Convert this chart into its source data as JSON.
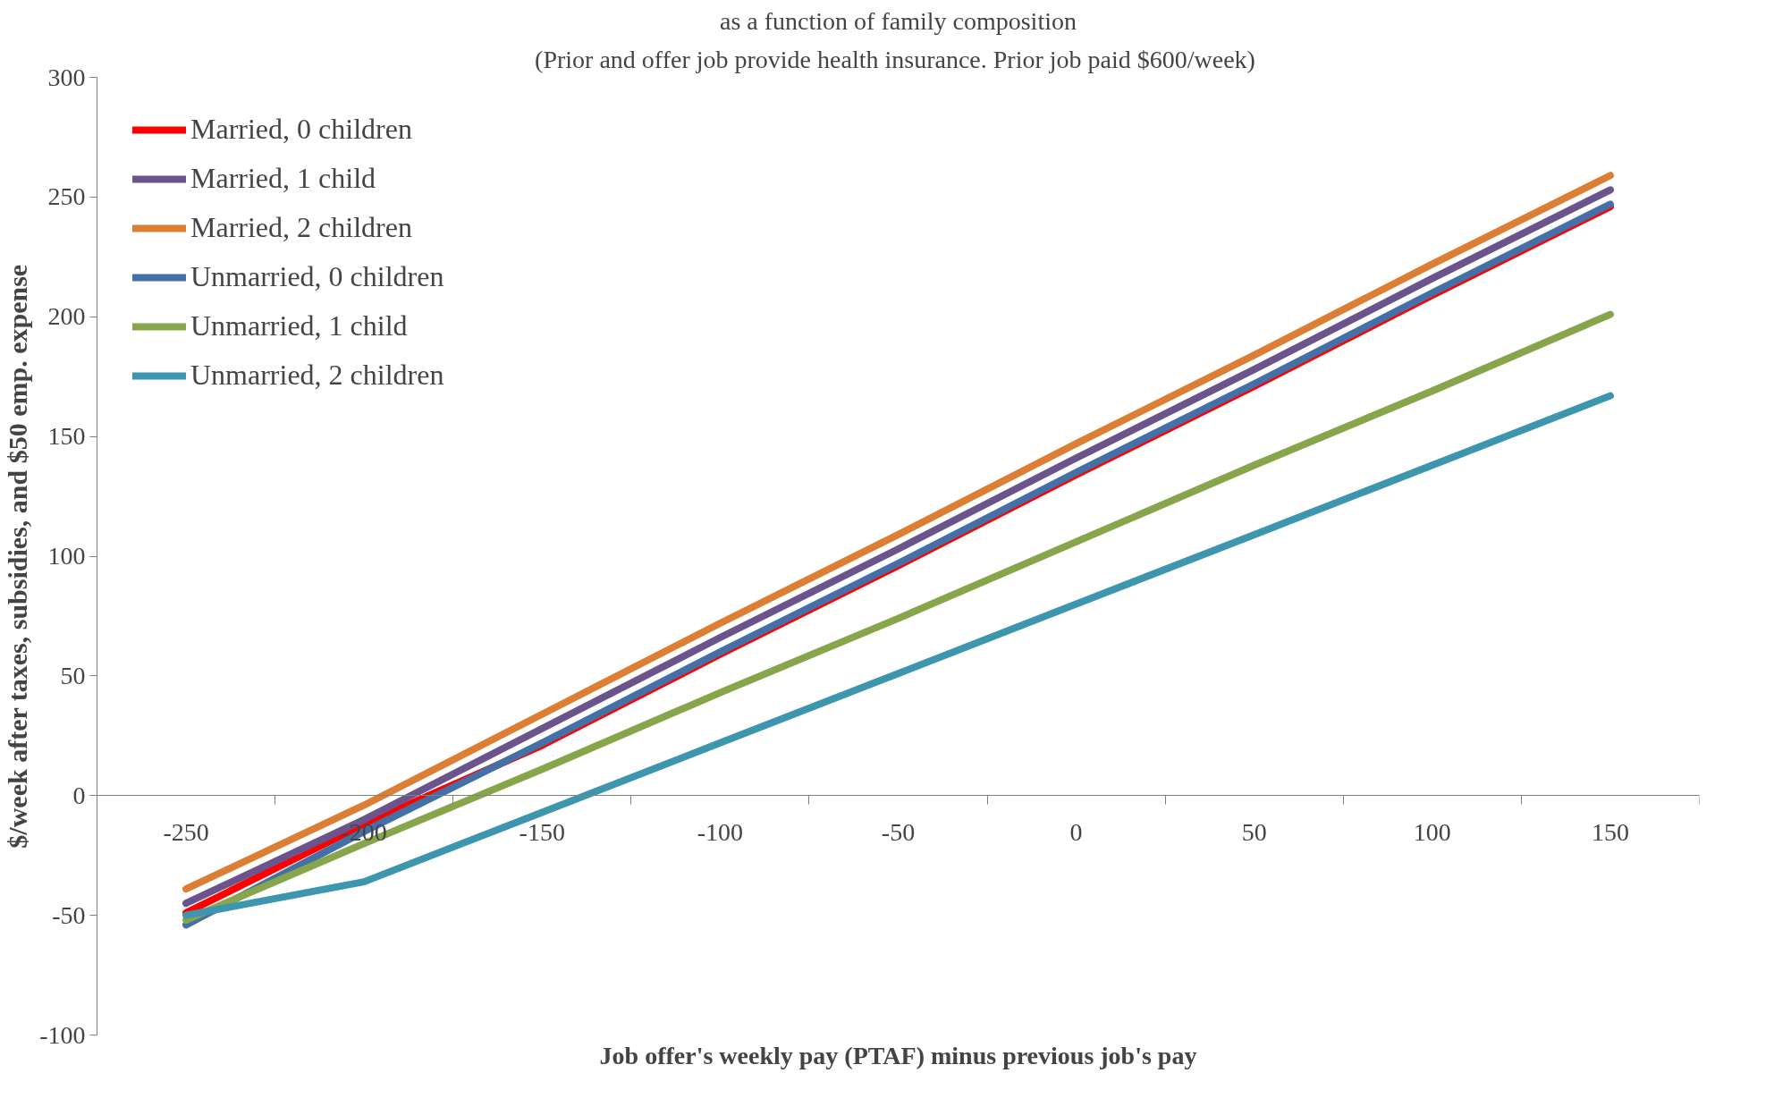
{
  "chart_data": {
    "type": "line",
    "title": "as a function of family composition",
    "subtitle": "(Prior and offer job provide health insurance.  Prior job paid $600/week)",
    "xlabel": "Job offer's weekly pay (PTAF) minus previous job's pay",
    "ylabel": "$/week after taxes, subsidies, and $50 emp. expense",
    "categories": [
      "-250",
      "-200",
      "-150",
      "-100",
      "-50",
      "0",
      "50",
      "100",
      "150"
    ],
    "ylim": [
      -100,
      300
    ],
    "yticks": [
      -100,
      -50,
      0,
      50,
      100,
      150,
      200,
      250,
      300
    ],
    "grid": false,
    "legend": "top left",
    "series": [
      {
        "name": "Married, 0 children",
        "color": "#ff0000",
        "values": [
          -49,
          -12,
          21,
          59,
          96,
          134,
          171,
          209,
          246
        ]
      },
      {
        "name": "Married, 1 child",
        "color": "#6b548c",
        "values": [
          -45,
          -10,
          28,
          66,
          103,
          141,
          178,
          216,
          253
        ]
      },
      {
        "name": "Married, 2 children",
        "color": "#dc7f35",
        "values": [
          -39,
          -4,
          34,
          72,
          109,
          147,
          184,
          222,
          259
        ]
      },
      {
        "name": "Unmarried, 0 children",
        "color": "#4470a6",
        "values": [
          -54,
          -15,
          22,
          60,
          97,
          135,
          172,
          210,
          247
        ]
      },
      {
        "name": "Unmarried, 1 child",
        "color": "#87a54a",
        "values": [
          -52,
          -20,
          11,
          43,
          74,
          106,
          138,
          169,
          201
        ]
      },
      {
        "name": "Unmarried, 2 children",
        "color": "#3d96ae",
        "values": [
          -50,
          -36,
          -7,
          22,
          51,
          80,
          109,
          138,
          167
        ]
      }
    ]
  }
}
